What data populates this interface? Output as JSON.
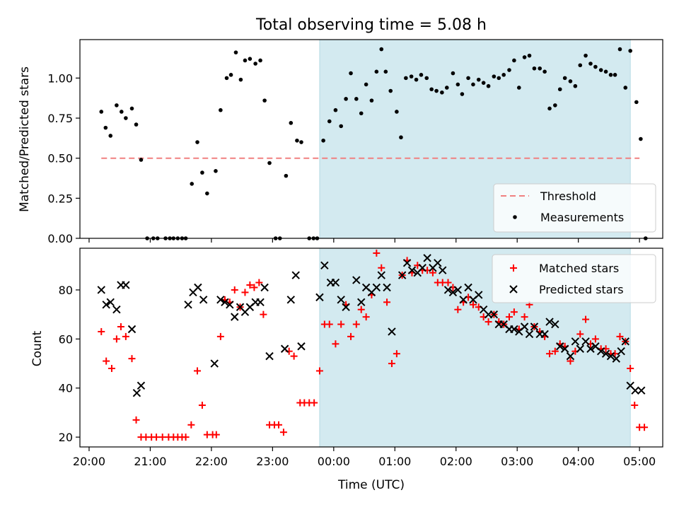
{
  "chart_data": {
    "type": "scatter",
    "title": "Total observing time = 5.08 h",
    "xlabel": "Time (UTC)",
    "x_tick_labels": [
      "20:00",
      "21:00",
      "22:00",
      "23:00",
      "00:00",
      "01:00",
      "02:00",
      "03:00",
      "04:00",
      "05:00"
    ],
    "x_range_hours": [
      19.85,
      29.38
    ],
    "shaded_interval_hours": [
      23.77,
      28.85
    ],
    "colors": {
      "shade": "#d3eaf0",
      "threshold": "#f08080",
      "matched": "#ff0000",
      "predicted": "#000000",
      "measure": "#000000"
    },
    "top": {
      "ylabel": "Matched/Predicted stars",
      "ylim": [
        0,
        1.24
      ],
      "y_ticks": [
        "0.00",
        "0.25",
        "0.50",
        "0.75",
        "1.00"
      ],
      "threshold": 0.5,
      "legend": {
        "position": "lower-right",
        "threshold_label": "Threshold",
        "measure_label": "Measurements"
      },
      "points": [
        [
          20.2,
          0.79
        ],
        [
          20.27,
          0.69
        ],
        [
          20.35,
          0.64
        ],
        [
          20.45,
          0.83
        ],
        [
          20.53,
          0.79
        ],
        [
          20.6,
          0.75
        ],
        [
          20.7,
          0.81
        ],
        [
          20.77,
          0.71
        ],
        [
          20.85,
          0.49
        ],
        [
          20.95,
          0
        ],
        [
          21.05,
          0
        ],
        [
          21.12,
          0
        ],
        [
          21.25,
          0
        ],
        [
          21.32,
          0
        ],
        [
          21.38,
          0
        ],
        [
          21.45,
          0
        ],
        [
          21.52,
          0
        ],
        [
          21.58,
          0
        ],
        [
          21.68,
          0.34
        ],
        [
          21.77,
          0.6
        ],
        [
          21.85,
          0.41
        ],
        [
          21.93,
          0.28
        ],
        [
          22.07,
          0.42
        ],
        [
          22.15,
          0.8
        ],
        [
          22.25,
          1.0
        ],
        [
          22.32,
          1.02
        ],
        [
          22.4,
          1.16
        ],
        [
          22.48,
          0.99
        ],
        [
          22.55,
          1.11
        ],
        [
          22.63,
          1.12
        ],
        [
          22.72,
          1.09
        ],
        [
          22.8,
          1.11
        ],
        [
          22.87,
          0.86
        ],
        [
          22.95,
          0.47
        ],
        [
          23.05,
          0
        ],
        [
          23.12,
          0
        ],
        [
          23.22,
          0.39
        ],
        [
          23.3,
          0.72
        ],
        [
          23.4,
          0.61
        ],
        [
          23.47,
          0.6
        ],
        [
          23.6,
          0
        ],
        [
          23.67,
          0
        ],
        [
          23.73,
          0
        ],
        [
          23.83,
          0.61
        ],
        [
          23.93,
          0.73
        ],
        [
          24.03,
          0.8
        ],
        [
          24.12,
          0.7
        ],
        [
          24.2,
          0.87
        ],
        [
          24.28,
          1.03
        ],
        [
          24.37,
          0.87
        ],
        [
          24.45,
          0.78
        ],
        [
          24.53,
          0.96
        ],
        [
          24.62,
          0.86
        ],
        [
          24.7,
          1.04
        ],
        [
          24.78,
          1.18
        ],
        [
          24.85,
          1.04
        ],
        [
          24.93,
          0.92
        ],
        [
          25.03,
          0.79
        ],
        [
          25.1,
          0.63
        ],
        [
          25.18,
          1.0
        ],
        [
          25.27,
          1.01
        ],
        [
          25.35,
          0.99
        ],
        [
          25.43,
          1.02
        ],
        [
          25.52,
          1.0
        ],
        [
          25.6,
          0.93
        ],
        [
          25.68,
          0.92
        ],
        [
          25.77,
          0.91
        ],
        [
          25.85,
          0.94
        ],
        [
          25.95,
          1.03
        ],
        [
          26.03,
          0.96
        ],
        [
          26.1,
          0.9
        ],
        [
          26.2,
          1.0
        ],
        [
          26.28,
          0.96
        ],
        [
          26.37,
          0.99
        ],
        [
          26.45,
          0.97
        ],
        [
          26.53,
          0.95
        ],
        [
          26.62,
          1.01
        ],
        [
          26.7,
          1.0
        ],
        [
          26.78,
          1.02
        ],
        [
          26.87,
          1.05
        ],
        [
          26.95,
          1.11
        ],
        [
          27.03,
          0.94
        ],
        [
          27.12,
          1.13
        ],
        [
          27.2,
          1.14
        ],
        [
          27.28,
          1.06
        ],
        [
          27.37,
          1.06
        ],
        [
          27.45,
          1.04
        ],
        [
          27.53,
          0.81
        ],
        [
          27.62,
          0.83
        ],
        [
          27.7,
          0.93
        ],
        [
          27.78,
          1.0
        ],
        [
          27.87,
          0.98
        ],
        [
          27.95,
          0.95
        ],
        [
          28.03,
          1.08
        ],
        [
          28.12,
          1.14
        ],
        [
          28.2,
          1.09
        ],
        [
          28.28,
          1.07
        ],
        [
          28.37,
          1.05
        ],
        [
          28.45,
          1.04
        ],
        [
          28.53,
          1.02
        ],
        [
          28.6,
          1.02
        ],
        [
          28.68,
          1.18
        ],
        [
          28.77,
          0.94
        ],
        [
          28.85,
          1.17
        ],
        [
          28.95,
          0.85
        ],
        [
          29.02,
          0.62
        ],
        [
          29.1,
          0
        ]
      ]
    },
    "bottom": {
      "ylabel": "Count",
      "ylim": [
        16,
        97
      ],
      "y_ticks": [
        "20",
        "40",
        "60",
        "80"
      ],
      "legend": {
        "position": "top-right",
        "matched_label": "Matched stars",
        "predicted_label": "Predicted stars"
      },
      "matched": [
        [
          20.2,
          63
        ],
        [
          20.28,
          51
        ],
        [
          20.37,
          48
        ],
        [
          20.45,
          60
        ],
        [
          20.52,
          65
        ],
        [
          20.6,
          61
        ],
        [
          20.7,
          52
        ],
        [
          20.77,
          27
        ],
        [
          20.85,
          20
        ],
        [
          20.93,
          20
        ],
        [
          21.02,
          20
        ],
        [
          21.1,
          20
        ],
        [
          21.2,
          20
        ],
        [
          21.3,
          20
        ],
        [
          21.38,
          20
        ],
        [
          21.45,
          20
        ],
        [
          21.52,
          20
        ],
        [
          21.58,
          20
        ],
        [
          21.67,
          25
        ],
        [
          21.77,
          47
        ],
        [
          21.85,
          33
        ],
        [
          21.93,
          21
        ],
        [
          22.02,
          21
        ],
        [
          22.08,
          21
        ],
        [
          22.15,
          61
        ],
        [
          22.22,
          76
        ],
        [
          22.3,
          75
        ],
        [
          22.38,
          80
        ],
        [
          22.47,
          73
        ],
        [
          22.55,
          79
        ],
        [
          22.63,
          82
        ],
        [
          22.7,
          81
        ],
        [
          22.78,
          83
        ],
        [
          22.85,
          70
        ],
        [
          22.95,
          25
        ],
        [
          23.03,
          25
        ],
        [
          23.1,
          25
        ],
        [
          23.18,
          22
        ],
        [
          23.27,
          55
        ],
        [
          23.35,
          53
        ],
        [
          23.45,
          34
        ],
        [
          23.52,
          34
        ],
        [
          23.6,
          34
        ],
        [
          23.68,
          34
        ],
        [
          23.77,
          47
        ],
        [
          23.85,
          66
        ],
        [
          23.93,
          66
        ],
        [
          24.03,
          58
        ],
        [
          24.12,
          66
        ],
        [
          24.2,
          74
        ],
        [
          24.28,
          61
        ],
        [
          24.37,
          66
        ],
        [
          24.45,
          72
        ],
        [
          24.53,
          69
        ],
        [
          24.62,
          78
        ],
        [
          24.7,
          95
        ],
        [
          24.78,
          89
        ],
        [
          24.87,
          75
        ],
        [
          24.95,
          50
        ],
        [
          25.03,
          54
        ],
        [
          25.12,
          86
        ],
        [
          25.2,
          92
        ],
        [
          25.28,
          87
        ],
        [
          25.37,
          90
        ],
        [
          25.45,
          88
        ],
        [
          25.53,
          88
        ],
        [
          25.62,
          87
        ],
        [
          25.7,
          83
        ],
        [
          25.78,
          83
        ],
        [
          25.87,
          83
        ],
        [
          25.95,
          81
        ],
        [
          26.03,
          72
        ],
        [
          26.12,
          75
        ],
        [
          26.2,
          77
        ],
        [
          26.28,
          74
        ],
        [
          26.37,
          73
        ],
        [
          26.45,
          69
        ],
        [
          26.53,
          67
        ],
        [
          26.62,
          70
        ],
        [
          26.7,
          67
        ],
        [
          26.78,
          66
        ],
        [
          26.87,
          69
        ],
        [
          26.95,
          71
        ],
        [
          27.03,
          64
        ],
        [
          27.12,
          69
        ],
        [
          27.2,
          74
        ],
        [
          27.28,
          65
        ],
        [
          27.37,
          63
        ],
        [
          27.45,
          61
        ],
        [
          27.53,
          54
        ],
        [
          27.62,
          55
        ],
        [
          27.7,
          58
        ],
        [
          27.78,
          57
        ],
        [
          27.87,
          51
        ],
        [
          27.95,
          55
        ],
        [
          28.03,
          62
        ],
        [
          28.12,
          68
        ],
        [
          28.2,
          58
        ],
        [
          28.28,
          60
        ],
        [
          28.37,
          56
        ],
        [
          28.45,
          56
        ],
        [
          28.53,
          54
        ],
        [
          28.6,
          54
        ],
        [
          28.68,
          61
        ],
        [
          28.77,
          59
        ],
        [
          28.85,
          48
        ],
        [
          28.92,
          33
        ],
        [
          29.0,
          24
        ],
        [
          29.08,
          24
        ]
      ],
      "predicted": [
        [
          20.2,
          80
        ],
        [
          20.28,
          74
        ],
        [
          20.35,
          75
        ],
        [
          20.45,
          72
        ],
        [
          20.52,
          82
        ],
        [
          20.6,
          82
        ],
        [
          20.7,
          64
        ],
        [
          20.78,
          38
        ],
        [
          20.85,
          41
        ],
        [
          21.62,
          74
        ],
        [
          21.7,
          79
        ],
        [
          21.78,
          81
        ],
        [
          21.87,
          76
        ],
        [
          22.05,
          50
        ],
        [
          22.15,
          76
        ],
        [
          22.22,
          75
        ],
        [
          22.3,
          74
        ],
        [
          22.38,
          69
        ],
        [
          22.47,
          73
        ],
        [
          22.55,
          71
        ],
        [
          22.63,
          73
        ],
        [
          22.72,
          75
        ],
        [
          22.8,
          75
        ],
        [
          22.87,
          81
        ],
        [
          22.95,
          53
        ],
        [
          23.2,
          56
        ],
        [
          23.3,
          76
        ],
        [
          23.38,
          86
        ],
        [
          23.47,
          57
        ],
        [
          23.77,
          77
        ],
        [
          23.85,
          90
        ],
        [
          23.95,
          83
        ],
        [
          24.03,
          83
        ],
        [
          24.12,
          76
        ],
        [
          24.2,
          73
        ],
        [
          24.37,
          84
        ],
        [
          24.45,
          75
        ],
        [
          24.53,
          81
        ],
        [
          24.62,
          79
        ],
        [
          24.7,
          81
        ],
        [
          24.78,
          86
        ],
        [
          24.87,
          81
        ],
        [
          24.95,
          63
        ],
        [
          25.12,
          86
        ],
        [
          25.2,
          91
        ],
        [
          25.28,
          88
        ],
        [
          25.37,
          87
        ],
        [
          25.45,
          89
        ],
        [
          25.53,
          93
        ],
        [
          25.62,
          89
        ],
        [
          25.7,
          91
        ],
        [
          25.78,
          88
        ],
        [
          25.87,
          80
        ],
        [
          25.95,
          79
        ],
        [
          26.03,
          80
        ],
        [
          26.12,
          76
        ],
        [
          26.2,
          81
        ],
        [
          26.28,
          76
        ],
        [
          26.37,
          78
        ],
        [
          26.45,
          72
        ],
        [
          26.53,
          70
        ],
        [
          26.62,
          70
        ],
        [
          26.7,
          66
        ],
        [
          26.78,
          66
        ],
        [
          26.87,
          64
        ],
        [
          26.95,
          64
        ],
        [
          27.03,
          63
        ],
        [
          27.12,
          65
        ],
        [
          27.2,
          62
        ],
        [
          27.28,
          65
        ],
        [
          27.37,
          62
        ],
        [
          27.45,
          62
        ],
        [
          27.53,
          67
        ],
        [
          27.62,
          66
        ],
        [
          27.7,
          57
        ],
        [
          27.78,
          56
        ],
        [
          27.87,
          53
        ],
        [
          27.95,
          59
        ],
        [
          28.03,
          56
        ],
        [
          28.12,
          59
        ],
        [
          28.2,
          56
        ],
        [
          28.28,
          57
        ],
        [
          28.37,
          55
        ],
        [
          28.45,
          54
        ],
        [
          28.53,
          53
        ],
        [
          28.62,
          52
        ],
        [
          28.7,
          55
        ],
        [
          28.77,
          59
        ],
        [
          28.85,
          41
        ],
        [
          28.93,
          39
        ],
        [
          29.03,
          39
        ]
      ]
    }
  }
}
